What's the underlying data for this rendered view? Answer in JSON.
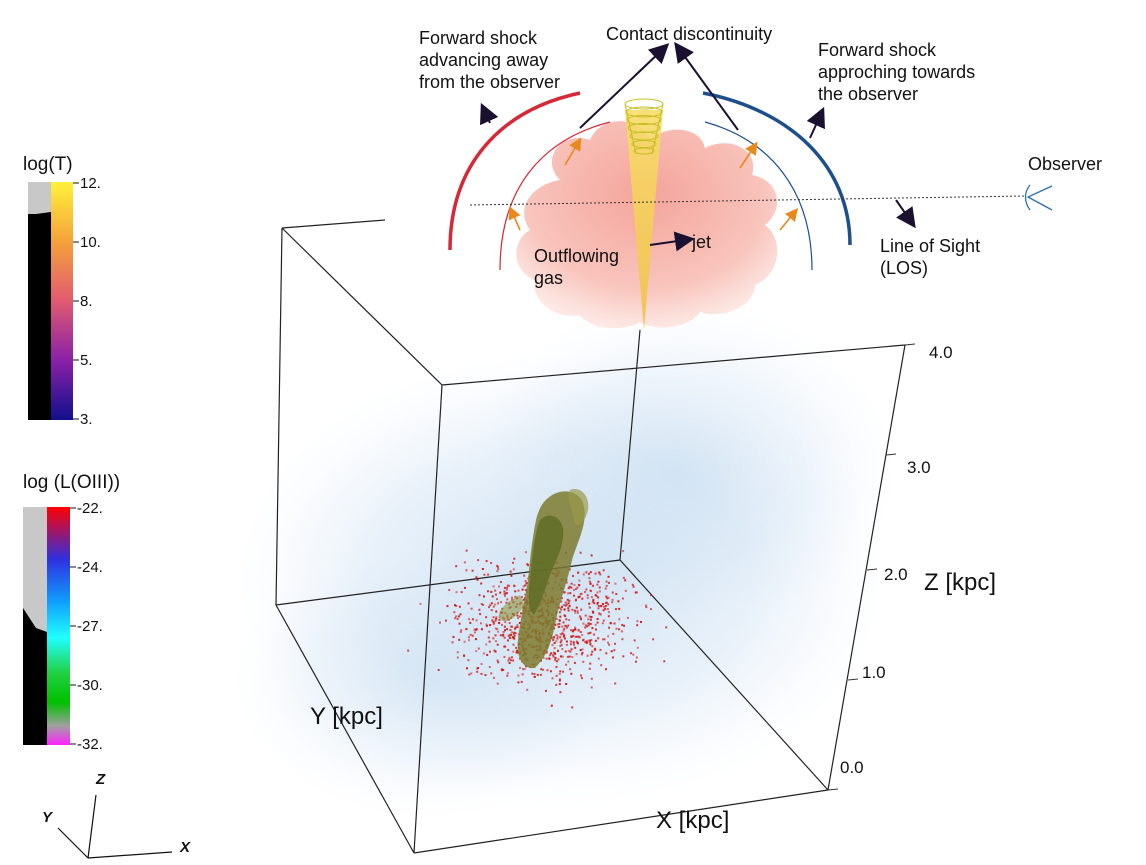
{
  "inset": {
    "labels": {
      "forward_shock_away": [
        "Forward shock",
        "advancing away",
        "from the observer"
      ],
      "contact_discontinuity": "Contact discontinuity",
      "forward_shock_toward": [
        "Forward shock",
        "approching towards",
        "the observer"
      ],
      "observer": "Observer",
      "line_of_sight": [
        "Line of Sight",
        "(LOS)"
      ],
      "outflowing_gas": [
        "Outflowing",
        "gas"
      ],
      "jet": "jet"
    },
    "colors": {
      "shock_away": "#d62836",
      "shock_toward": "#1d4f8c",
      "cloud": "#f5b5ac",
      "jet": "#f2d15a",
      "arrows": "#e8891e",
      "pointer": "#1a1030"
    }
  },
  "colorbars": [
    {
      "title": "log(T)",
      "ticks": [
        "12.",
        "10.",
        "8.",
        "5.",
        "3."
      ],
      "gradient": [
        "#fff23a",
        "#f5a23a",
        "#e05a70",
        "#8a20a8",
        "#10108a"
      ]
    },
    {
      "title": "log (L(OIII))",
      "ticks": [
        "-22.",
        "-24.",
        "-27.",
        "-30.",
        "-32."
      ],
      "gradient": [
        "#ff0000",
        "#3030e0",
        "#10a0ff",
        "#20ffff",
        "#20d040",
        "#00c000",
        "#a0a0a0",
        "#ff20ff"
      ]
    }
  ],
  "box": {
    "x_label": "X [kpc]",
    "y_label": "Y [kpc]",
    "z_label": "Z [kpc]",
    "z_ticks": [
      "0.0",
      "1.0",
      "2.0",
      "3.0",
      "4.0"
    ]
  },
  "triad": {
    "z": "Z",
    "y": "Y",
    "x": "X"
  },
  "colors": {
    "haze": "#bcd6ee",
    "emission": "#d01818",
    "core": "#7c7a2e"
  }
}
